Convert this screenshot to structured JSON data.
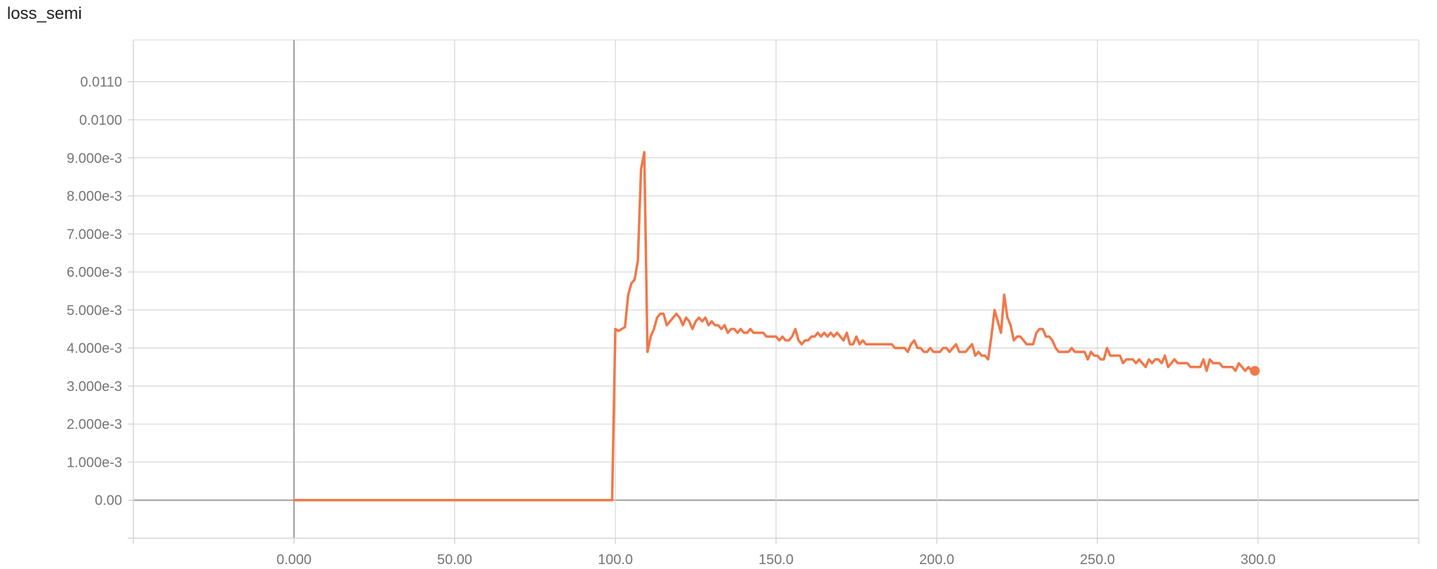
{
  "title": "loss_semi",
  "colors": {
    "series": "#f0784a",
    "grid": "#d6d6d6",
    "zero_axis": "#9e9e9e",
    "text": "#757575"
  },
  "chart_data": {
    "type": "line",
    "title": "loss_semi",
    "xlabel": "",
    "ylabel": "",
    "xlim": [
      -50,
      350
    ],
    "ylim": [
      -0.001,
      0.0121
    ],
    "grid": true,
    "x_ticks": [
      0,
      50,
      100,
      150,
      200,
      250,
      300
    ],
    "x_tick_labels": [
      "0.000",
      "50.00",
      "100.0",
      "150.0",
      "200.0",
      "250.0",
      "300.0"
    ],
    "y_ticks": [
      0,
      0.001,
      0.002,
      0.003,
      0.004,
      0.005,
      0.006,
      0.007,
      0.008,
      0.009,
      0.01,
      0.011
    ],
    "y_tick_labels": [
      "0.00",
      "1.000e-3",
      "2.000e-3",
      "3.000e-3",
      "4.000e-3",
      "5.000e-3",
      "6.000e-3",
      "7.000e-3",
      "8.000e-3",
      "9.000e-3",
      "0.0100",
      "0.0110"
    ],
    "series": [
      {
        "points": [
          [
            0,
            0
          ],
          [
            99,
            0
          ],
          [
            100,
            0.0045
          ],
          [
            101,
            0.00445
          ],
          [
            102,
            0.0045
          ],
          [
            103,
            0.00455
          ],
          [
            104,
            0.0054
          ],
          [
            105,
            0.0057
          ],
          [
            106,
            0.0058
          ],
          [
            107,
            0.0063
          ],
          [
            108,
            0.0087
          ],
          [
            109,
            0.00915
          ],
          [
            110,
            0.0039
          ],
          [
            111,
            0.0043
          ],
          [
            112,
            0.0045
          ],
          [
            113,
            0.0048
          ],
          [
            114,
            0.0049
          ],
          [
            115,
            0.0049
          ],
          [
            116,
            0.0046
          ],
          [
            117,
            0.0047
          ],
          [
            118,
            0.0048
          ],
          [
            119,
            0.0049
          ],
          [
            120,
            0.0048
          ],
          [
            121,
            0.0046
          ],
          [
            122,
            0.0048
          ],
          [
            123,
            0.0047
          ],
          [
            124,
            0.0045
          ],
          [
            125,
            0.0047
          ],
          [
            126,
            0.0048
          ],
          [
            127,
            0.0047
          ],
          [
            128,
            0.0048
          ],
          [
            129,
            0.0046
          ],
          [
            130,
            0.0047
          ],
          [
            131,
            0.0046
          ],
          [
            132,
            0.0046
          ],
          [
            133,
            0.0045
          ],
          [
            134,
            0.0046
          ],
          [
            135,
            0.0044
          ],
          [
            136,
            0.0045
          ],
          [
            137,
            0.0045
          ],
          [
            138,
            0.0044
          ],
          [
            139,
            0.0045
          ],
          [
            140,
            0.0044
          ],
          [
            141,
            0.0044
          ],
          [
            142,
            0.0045
          ],
          [
            143,
            0.0044
          ],
          [
            144,
            0.0044
          ],
          [
            145,
            0.0044
          ],
          [
            146,
            0.0044
          ],
          [
            147,
            0.0043
          ],
          [
            148,
            0.0043
          ],
          [
            149,
            0.0043
          ],
          [
            150,
            0.0043
          ],
          [
            151,
            0.0042
          ],
          [
            152,
            0.0043
          ],
          [
            153,
            0.0042
          ],
          [
            154,
            0.0042
          ],
          [
            155,
            0.0043
          ],
          [
            156,
            0.0045
          ],
          [
            157,
            0.0042
          ],
          [
            158,
            0.0041
          ],
          [
            159,
            0.0042
          ],
          [
            160,
            0.0042
          ],
          [
            161,
            0.0043
          ],
          [
            162,
            0.0043
          ],
          [
            163,
            0.0044
          ],
          [
            164,
            0.0043
          ],
          [
            165,
            0.0044
          ],
          [
            166,
            0.0043
          ],
          [
            167,
            0.0044
          ],
          [
            168,
            0.0043
          ],
          [
            169,
            0.0044
          ],
          [
            170,
            0.0043
          ],
          [
            171,
            0.0042
          ],
          [
            172,
            0.0044
          ],
          [
            173,
            0.0041
          ],
          [
            174,
            0.0041
          ],
          [
            175,
            0.0043
          ],
          [
            176,
            0.0041
          ],
          [
            177,
            0.0042
          ],
          [
            178,
            0.0041
          ],
          [
            179,
            0.0041
          ],
          [
            180,
            0.0041
          ],
          [
            181,
            0.0041
          ],
          [
            182,
            0.0041
          ],
          [
            183,
            0.0041
          ],
          [
            184,
            0.0041
          ],
          [
            185,
            0.0041
          ],
          [
            186,
            0.0041
          ],
          [
            187,
            0.004
          ],
          [
            188,
            0.004
          ],
          [
            189,
            0.004
          ],
          [
            190,
            0.004
          ],
          [
            191,
            0.0039
          ],
          [
            192,
            0.0041
          ],
          [
            193,
            0.0042
          ],
          [
            194,
            0.004
          ],
          [
            195,
            0.004
          ],
          [
            196,
            0.0039
          ],
          [
            197,
            0.0039
          ],
          [
            198,
            0.004
          ],
          [
            199,
            0.0039
          ],
          [
            200,
            0.0039
          ],
          [
            201,
            0.0039
          ],
          [
            202,
            0.004
          ],
          [
            203,
            0.004
          ],
          [
            204,
            0.0039
          ],
          [
            205,
            0.004
          ],
          [
            206,
            0.0041
          ],
          [
            207,
            0.0039
          ],
          [
            208,
            0.0039
          ],
          [
            209,
            0.0039
          ],
          [
            210,
            0.004
          ],
          [
            211,
            0.0041
          ],
          [
            212,
            0.0038
          ],
          [
            213,
            0.0039
          ],
          [
            214,
            0.0038
          ],
          [
            215,
            0.0038
          ],
          [
            216,
            0.0037
          ],
          [
            217,
            0.0043
          ],
          [
            218,
            0.005
          ],
          [
            219,
            0.0047
          ],
          [
            220,
            0.0044
          ],
          [
            221,
            0.0054
          ],
          [
            222,
            0.0048
          ],
          [
            223,
            0.0046
          ],
          [
            224,
            0.0042
          ],
          [
            225,
            0.0043
          ],
          [
            226,
            0.0043
          ],
          [
            227,
            0.0042
          ],
          [
            228,
            0.0041
          ],
          [
            229,
            0.0041
          ],
          [
            230,
            0.0041
          ],
          [
            231,
            0.0044
          ],
          [
            232,
            0.0045
          ],
          [
            233,
            0.0045
          ],
          [
            234,
            0.0043
          ],
          [
            235,
            0.0043
          ],
          [
            236,
            0.0042
          ],
          [
            237,
            0.004
          ],
          [
            238,
            0.0039
          ],
          [
            239,
            0.0039
          ],
          [
            240,
            0.0039
          ],
          [
            241,
            0.0039
          ],
          [
            242,
            0.004
          ],
          [
            243,
            0.0039
          ],
          [
            244,
            0.0039
          ],
          [
            245,
            0.0039
          ],
          [
            246,
            0.0039
          ],
          [
            247,
            0.0037
          ],
          [
            248,
            0.0039
          ],
          [
            249,
            0.0038
          ],
          [
            250,
            0.0038
          ],
          [
            251,
            0.0037
          ],
          [
            252,
            0.0037
          ],
          [
            253,
            0.004
          ],
          [
            254,
            0.0038
          ],
          [
            255,
            0.0038
          ],
          [
            256,
            0.0038
          ],
          [
            257,
            0.0038
          ],
          [
            258,
            0.0036
          ],
          [
            259,
            0.0037
          ],
          [
            260,
            0.0037
          ],
          [
            261,
            0.0037
          ],
          [
            262,
            0.0036
          ],
          [
            263,
            0.0037
          ],
          [
            264,
            0.0036
          ],
          [
            265,
            0.0035
          ],
          [
            266,
            0.0037
          ],
          [
            267,
            0.0036
          ],
          [
            268,
            0.0037
          ],
          [
            269,
            0.0037
          ],
          [
            270,
            0.0036
          ],
          [
            271,
            0.0038
          ],
          [
            272,
            0.0035
          ],
          [
            273,
            0.0036
          ],
          [
            274,
            0.0037
          ],
          [
            275,
            0.0036
          ],
          [
            276,
            0.0036
          ],
          [
            277,
            0.0036
          ],
          [
            278,
            0.0036
          ],
          [
            279,
            0.0035
          ],
          [
            280,
            0.0035
          ],
          [
            281,
            0.0035
          ],
          [
            282,
            0.0035
          ],
          [
            283,
            0.0037
          ],
          [
            284,
            0.0034
          ],
          [
            285,
            0.0037
          ],
          [
            286,
            0.0036
          ],
          [
            287,
            0.0036
          ],
          [
            288,
            0.0036
          ],
          [
            289,
            0.0035
          ],
          [
            290,
            0.0035
          ],
          [
            291,
            0.0035
          ],
          [
            292,
            0.0035
          ],
          [
            293,
            0.0034
          ],
          [
            294,
            0.0036
          ],
          [
            295,
            0.0035
          ],
          [
            296,
            0.0034
          ],
          [
            297,
            0.0035
          ],
          [
            298,
            0.0034
          ],
          [
            299,
            0.0034
          ]
        ]
      }
    ]
  }
}
